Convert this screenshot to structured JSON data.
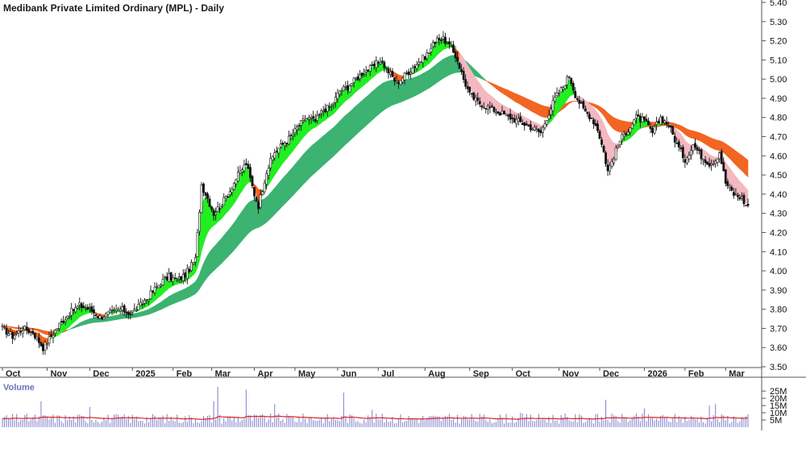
{
  "colors": {
    "background": "#ffffff",
    "axis": "#555555",
    "candle": "#111111",
    "short_term_rising": "#22ee22",
    "short_term_falling": "#f26522",
    "short_term_weak": "#f4b8c0",
    "long_term_rising": "#3cb371",
    "long_term_falling": "#f26522",
    "volume_bar": "#8a8ad0",
    "volume_average": "#dd2222"
  },
  "chart_data": [
    {
      "type": "candlestick",
      "title": "Medibank Private Limited Ordinary (MPL) - Daily",
      "ylim": [
        3.5,
        5.4
      ],
      "y_ticks": [
        "5.40",
        "5.30",
        "5.20",
        "5.10",
        "5.00",
        "4.90",
        "4.80",
        "4.70",
        "4.60",
        "4.50",
        "4.40",
        "4.30",
        "4.20",
        "4.10",
        "4.00",
        "3.90",
        "3.80",
        "3.70",
        "3.60",
        "3.50"
      ],
      "x_labels": [
        "Oct",
        "Nov",
        "Dec",
        "2025",
        "Feb",
        "Mar",
        "Apr",
        "May",
        "Jun",
        "Jul",
        "Aug",
        "Sep",
        "Oct",
        "Nov",
        "Dec",
        "2026",
        "Feb",
        "Mar"
      ],
      "month_index": [
        0,
        22,
        43,
        64,
        84,
        103,
        124,
        144,
        165,
        185,
        208,
        230,
        251,
        274,
        294,
        316,
        336,
        356
      ],
      "close_anchors": [
        [
          0,
          3.7
        ],
        [
          5,
          3.66
        ],
        [
          10,
          3.7
        ],
        [
          15,
          3.68
        ],
        [
          20,
          3.6
        ],
        [
          24,
          3.66
        ],
        [
          28,
          3.72
        ],
        [
          33,
          3.78
        ],
        [
          38,
          3.82
        ],
        [
          43,
          3.8
        ],
        [
          48,
          3.76
        ],
        [
          53,
          3.78
        ],
        [
          58,
          3.8
        ],
        [
          63,
          3.78
        ],
        [
          68,
          3.82
        ],
        [
          73,
          3.88
        ],
        [
          78,
          3.94
        ],
        [
          82,
          3.97
        ],
        [
          86,
          3.95
        ],
        [
          90,
          3.98
        ],
        [
          95,
          4.06
        ],
        [
          98,
          4.45
        ],
        [
          101,
          4.38
        ],
        [
          104,
          4.3
        ],
        [
          108,
          4.35
        ],
        [
          112,
          4.42
        ],
        [
          116,
          4.5
        ],
        [
          120,
          4.56
        ],
        [
          124,
          4.4
        ],
        [
          126,
          4.34
        ],
        [
          130,
          4.52
        ],
        [
          134,
          4.62
        ],
        [
          138,
          4.66
        ],
        [
          142,
          4.7
        ],
        [
          146,
          4.76
        ],
        [
          150,
          4.8
        ],
        [
          154,
          4.78
        ],
        [
          158,
          4.84
        ],
        [
          162,
          4.86
        ],
        [
          166,
          4.94
        ],
        [
          170,
          4.96
        ],
        [
          174,
          5.0
        ],
        [
          178,
          5.04
        ],
        [
          182,
          5.06
        ],
        [
          186,
          5.1
        ],
        [
          190,
          5.04
        ],
        [
          194,
          4.98
        ],
        [
          198,
          5.02
        ],
        [
          202,
          5.06
        ],
        [
          206,
          5.1
        ],
        [
          210,
          5.14
        ],
        [
          214,
          5.22
        ],
        [
          218,
          5.2
        ],
        [
          221,
          5.16
        ],
        [
          224,
          5.1
        ],
        [
          227,
          5.0
        ],
        [
          230,
          4.92
        ],
        [
          234,
          4.88
        ],
        [
          238,
          4.86
        ],
        [
          242,
          4.84
        ],
        [
          246,
          4.82
        ],
        [
          250,
          4.8
        ],
        [
          254,
          4.78
        ],
        [
          258,
          4.76
        ],
        [
          262,
          4.74
        ],
        [
          265,
          4.72
        ],
        [
          268,
          4.8
        ],
        [
          272,
          4.9
        ],
        [
          276,
          4.96
        ],
        [
          279,
          5.02
        ],
        [
          282,
          4.92
        ],
        [
          286,
          4.84
        ],
        [
          290,
          4.8
        ],
        [
          293,
          4.74
        ],
        [
          296,
          4.62
        ],
        [
          298,
          4.52
        ],
        [
          301,
          4.6
        ],
        [
          304,
          4.68
        ],
        [
          308,
          4.74
        ],
        [
          312,
          4.8
        ],
        [
          316,
          4.78
        ],
        [
          320,
          4.72
        ],
        [
          324,
          4.8
        ],
        [
          328,
          4.76
        ],
        [
          332,
          4.66
        ],
        [
          336,
          4.58
        ],
        [
          340,
          4.66
        ],
        [
          344,
          4.6
        ],
        [
          348,
          4.56
        ],
        [
          351,
          4.58
        ],
        [
          353,
          4.62
        ],
        [
          356,
          4.46
        ],
        [
          360,
          4.4
        ],
        [
          364,
          4.38
        ],
        [
          366,
          4.34
        ]
      ],
      "last_close": 4.34
    },
    {
      "type": "bar",
      "title": "Volume",
      "ylim": [
        0,
        29000000
      ],
      "y_ticks": [
        "25M",
        "20M",
        "15M",
        "10M",
        "5M"
      ],
      "average_line": "moving average of volume",
      "notable_spikes": [
        [
          19,
          18000000
        ],
        [
          43,
          14000000
        ],
        [
          104,
          18000000
        ],
        [
          106,
          28000000
        ],
        [
          120,
          26000000
        ],
        [
          134,
          16000000
        ],
        [
          168,
          24000000
        ],
        [
          182,
          12000000
        ],
        [
          255,
          10000000
        ],
        [
          297,
          19000000
        ],
        [
          316,
          13000000
        ],
        [
          348,
          15000000
        ],
        [
          351,
          16000000
        ]
      ]
    }
  ]
}
